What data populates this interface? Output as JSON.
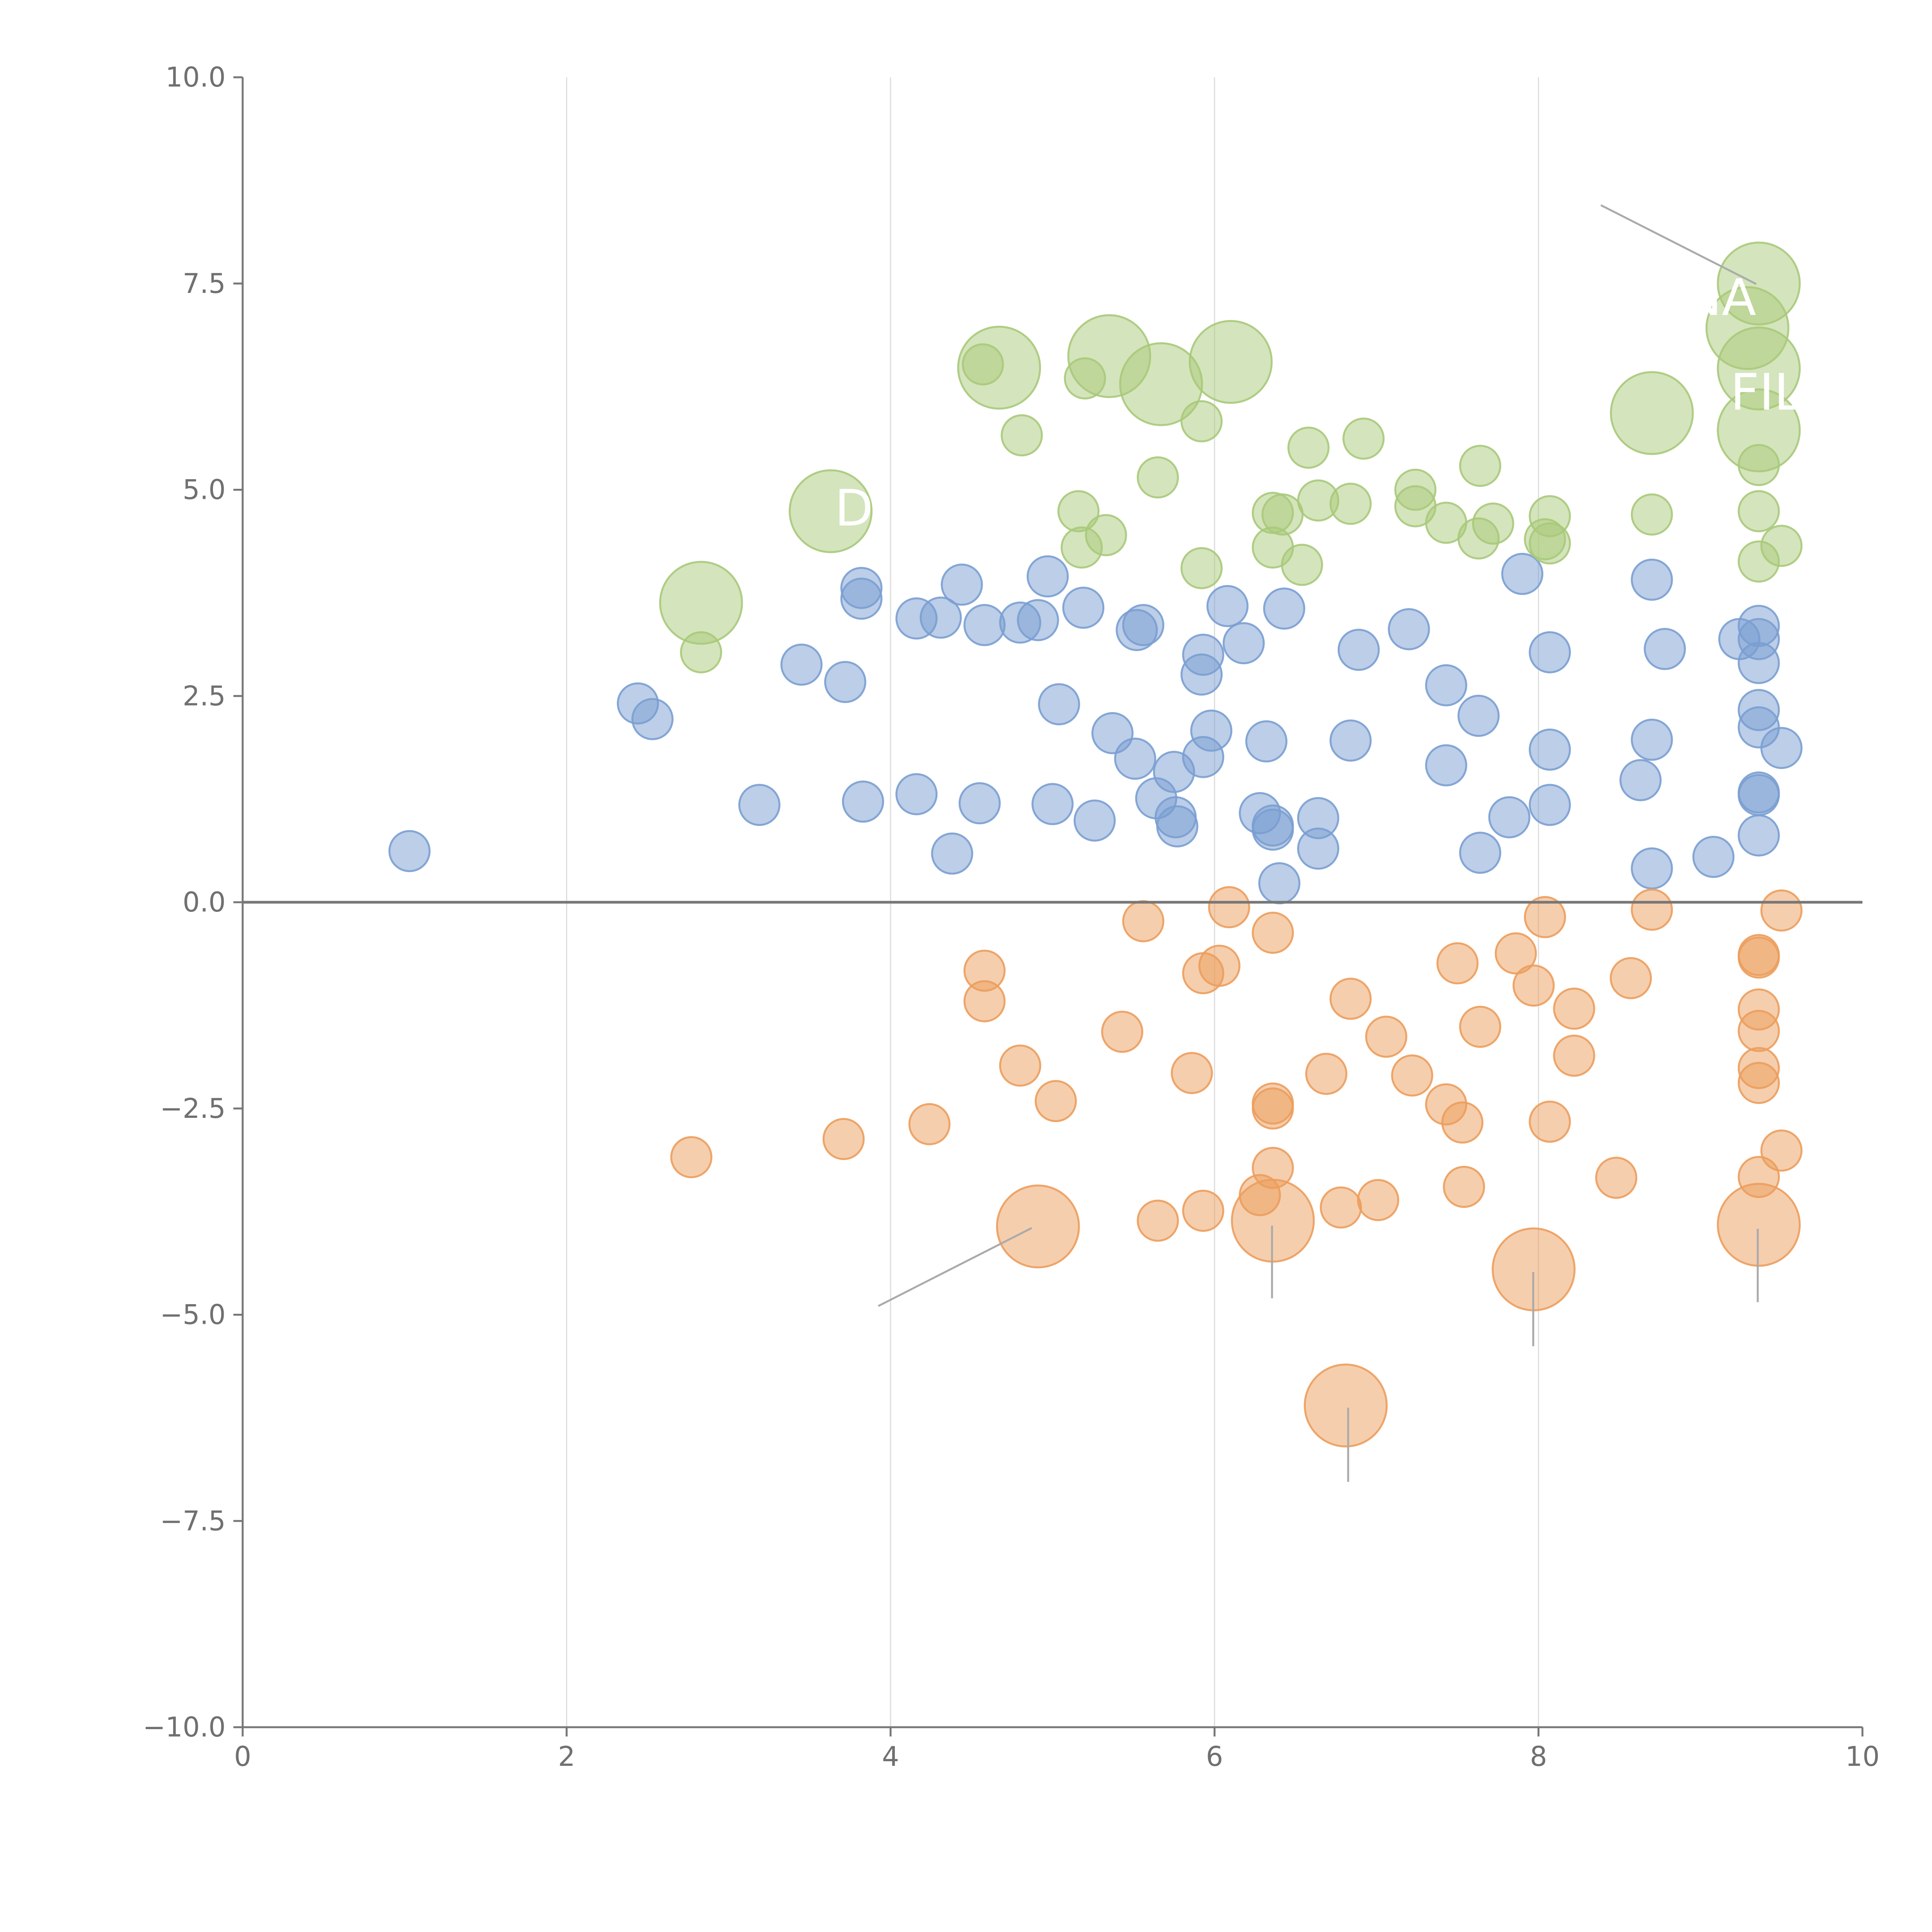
{
  "chart_data": {
    "type": "scatter",
    "title": "",
    "xlabel": "",
    "ylabel": "",
    "xlim": [
      0,
      10
    ],
    "ylim": [
      -10,
      10
    ],
    "x_ticks": [
      "0",
      "2",
      "4",
      "6",
      "8",
      "10"
    ],
    "y_ticks": [
      "−10.0",
      "−7.5",
      "−5.0",
      "−2.5",
      "0.0",
      "2.5",
      "5.0",
      "7.5",
      "10.0"
    ],
    "x_tick_values": [
      0,
      2,
      4,
      6,
      8,
      10
    ],
    "y_tick_values": [
      -10,
      -7.5,
      -5,
      -2.5,
      0,
      2.5,
      5,
      7.5,
      10
    ],
    "reference_line_y": 0,
    "vertical_grid": true,
    "colors": {
      "blue": "#7a9ed1",
      "orange": "#ec9d5c",
      "green": "#a9c97a",
      "axis": "#777777",
      "grid": "#dddddd",
      "zero": "#777777"
    },
    "series": [
      {
        "name": "positive",
        "color": "#7a9ed1",
        "points": [
          [
            1.03,
            0.62
          ],
          [
            2.44,
            2.41
          ],
          [
            2.53,
            2.22
          ],
          [
            3.19,
            1.18
          ],
          [
            3.45,
            2.88
          ],
          [
            3.72,
            2.67
          ],
          [
            3.82,
            3.81
          ],
          [
            3.82,
            3.68
          ],
          [
            3.83,
            1.22
          ],
          [
            4.16,
            1.31
          ],
          [
            4.16,
            3.44
          ],
          [
            4.31,
            3.45
          ],
          [
            4.38,
            0.59
          ],
          [
            4.44,
            3.85
          ],
          [
            4.55,
            1.2
          ],
          [
            4.58,
            3.36
          ],
          [
            4.8,
            3.39
          ],
          [
            4.91,
            3.42
          ],
          [
            4.97,
            3.95
          ],
          [
            5.0,
            1.19
          ],
          [
            5.04,
            2.4
          ],
          [
            5.19,
            3.57
          ],
          [
            5.26,
            0.99
          ],
          [
            5.37,
            2.05
          ],
          [
            5.51,
            1.74
          ],
          [
            5.52,
            3.3
          ],
          [
            5.56,
            3.36
          ],
          [
            5.64,
            1.26
          ],
          [
            5.75,
            1.58
          ],
          [
            5.76,
            1.03
          ],
          [
            5.77,
            0.92
          ],
          [
            5.92,
            2.76
          ],
          [
            5.93,
            1.76
          ],
          [
            5.93,
            3.0
          ],
          [
            5.98,
            2.08
          ],
          [
            6.08,
            3.59
          ],
          [
            6.18,
            3.14
          ],
          [
            6.28,
            1.08
          ],
          [
            6.32,
            1.95
          ],
          [
            6.36,
            0.93
          ],
          [
            6.36,
            0.88
          ],
          [
            6.4,
            0.23
          ],
          [
            6.43,
            3.56
          ],
          [
            6.64,
            1.02
          ],
          [
            6.64,
            0.65
          ],
          [
            6.84,
            1.96
          ],
          [
            6.89,
            3.06
          ],
          [
            7.2,
            3.31
          ],
          [
            7.43,
            2.63
          ],
          [
            7.43,
            1.66
          ],
          [
            7.63,
            2.26
          ],
          [
            7.64,
            0.6
          ],
          [
            7.82,
            1.03
          ],
          [
            7.9,
            3.98
          ],
          [
            8.07,
            3.03
          ],
          [
            8.07,
            1.85
          ],
          [
            8.07,
            1.18
          ],
          [
            8.63,
            1.48
          ],
          [
            8.7,
            3.91
          ],
          [
            8.7,
            1.97
          ],
          [
            8.7,
            0.41
          ],
          [
            8.78,
            3.07
          ],
          [
            9.08,
            0.55
          ],
          [
            9.24,
            3.19
          ],
          [
            9.36,
            2.9
          ],
          [
            9.36,
            2.33
          ],
          [
            9.36,
            2.12
          ],
          [
            9.36,
            1.33
          ],
          [
            9.36,
            1.3
          ],
          [
            9.36,
            0.81
          ],
          [
            9.36,
            3.35
          ],
          [
            9.36,
            3.19
          ],
          [
            9.5,
            1.87
          ]
        ]
      },
      {
        "name": "negative",
        "color": "#ec9d5c",
        "points": [
          [
            2.77,
            -3.09
          ],
          [
            3.71,
            -2.87
          ],
          [
            4.24,
            -2.69
          ],
          [
            4.58,
            -0.83
          ],
          [
            4.58,
            -1.2
          ],
          [
            4.8,
            -1.98
          ],
          [
            5.02,
            -2.41
          ],
          [
            5.43,
            -1.57
          ],
          [
            5.56,
            -0.23
          ],
          [
            5.65,
            -3.86
          ],
          [
            5.86,
            -2.07
          ],
          [
            5.93,
            -0.86
          ],
          [
            5.93,
            -3.74
          ],
          [
            6.03,
            -0.77
          ],
          [
            6.09,
            -0.06
          ],
          [
            6.28,
            -3.55
          ],
          [
            6.36,
            -0.37
          ],
          [
            6.36,
            -2.44
          ],
          [
            6.36,
            -2.5
          ],
          [
            6.36,
            -3.22
          ],
          [
            6.69,
            -2.08
          ],
          [
            6.78,
            -3.7
          ],
          [
            6.84,
            -1.17
          ],
          [
            7.01,
            -3.61
          ],
          [
            7.06,
            -1.63
          ],
          [
            7.22,
            -2.1
          ],
          [
            7.43,
            -2.45
          ],
          [
            7.5,
            -0.74
          ],
          [
            7.53,
            -2.67
          ],
          [
            7.54,
            -3.45
          ],
          [
            7.64,
            -1.51
          ],
          [
            7.86,
            -0.62
          ],
          [
            7.97,
            -1.01
          ],
          [
            8.04,
            -0.18
          ],
          [
            8.07,
            -2.66
          ],
          [
            8.22,
            -1.29
          ],
          [
            8.22,
            -1.86
          ],
          [
            8.48,
            -3.34
          ],
          [
            8.57,
            -0.92
          ],
          [
            8.7,
            -0.09
          ],
          [
            9.36,
            -0.64
          ],
          [
            9.36,
            -0.67
          ],
          [
            9.36,
            -1.3
          ],
          [
            9.36,
            -1.56
          ],
          [
            9.36,
            -2.01
          ],
          [
            9.36,
            -2.19
          ],
          [
            9.36,
            -3.33
          ],
          [
            9.5,
            -0.1
          ],
          [
            9.5,
            -3.01
          ]
        ],
        "large_points": [
          [
            4.91,
            -3.93
          ],
          [
            6.36,
            -3.86
          ],
          [
            7.97,
            -4.45
          ],
          [
            6.81,
            -6.1
          ],
          [
            9.36,
            -3.91
          ]
        ]
      },
      {
        "name": "highlighted",
        "color": "#a9c97a",
        "points": [
          [
            2.83,
            3.03
          ],
          [
            4.57,
            6.52
          ],
          [
            4.81,
            5.66
          ],
          [
            5.16,
            4.74
          ],
          [
            5.18,
            4.3
          ],
          [
            5.2,
            6.35
          ],
          [
            5.33,
            4.45
          ],
          [
            5.92,
            4.05
          ],
          [
            5.92,
            5.83
          ],
          [
            6.36,
            4.3
          ],
          [
            6.36,
            4.72
          ],
          [
            6.42,
            4.7
          ],
          [
            6.54,
            4.09
          ],
          [
            6.58,
            5.51
          ],
          [
            6.64,
            4.87
          ],
          [
            6.84,
            4.83
          ],
          [
            6.92,
            5.62
          ],
          [
            7.24,
            5.0
          ],
          [
            7.24,
            4.8
          ],
          [
            7.43,
            4.6
          ],
          [
            7.63,
            4.41
          ],
          [
            7.64,
            5.29
          ],
          [
            7.72,
            4.59
          ],
          [
            8.04,
            4.4
          ],
          [
            8.07,
            4.68
          ],
          [
            8.07,
            4.35
          ],
          [
            8.7,
            4.7
          ],
          [
            9.36,
            5.3
          ],
          [
            9.36,
            4.74
          ],
          [
            9.36,
            4.13
          ],
          [
            9.5,
            4.32
          ],
          [
            5.65,
            5.15
          ]
        ],
        "large_points": [
          [
            2.83,
            3.63
          ],
          [
            3.63,
            4.74
          ],
          [
            4.67,
            6.48
          ],
          [
            5.35,
            6.62
          ],
          [
            5.67,
            6.28
          ],
          [
            6.1,
            6.55
          ],
          [
            8.7,
            5.93
          ],
          [
            9.29,
            6.96
          ],
          [
            9.36,
            7.5
          ],
          [
            9.36,
            6.47
          ],
          [
            9.36,
            5.72
          ]
        ]
      }
    ],
    "annotations": [
      {
        "text": "NA"
      },
      {
        "text": "FIL"
      },
      {
        "text": "D"
      }
    ]
  }
}
